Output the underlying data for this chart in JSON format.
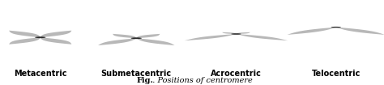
{
  "background_color": "#ffffff",
  "arm_color": "#b8b8b8",
  "centromere_color": "#2a2a2a",
  "label_color": "#000000",
  "labels": [
    "Metacentric",
    "Submetacentric",
    "Acrocentric",
    "Telocentric"
  ],
  "caption_italic": "  . Positions of centromere",
  "caption_bold": "Fig.",
  "label_fontsize": 7.0,
  "caption_fontsize": 7.0,
  "figsize": [
    4.74,
    1.05
  ],
  "dpi": 100
}
